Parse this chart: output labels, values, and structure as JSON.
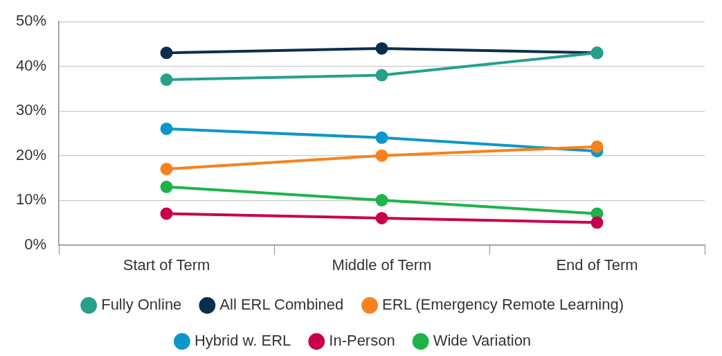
{
  "chart_data": {
    "type": "line",
    "categories": [
      "Start of Term",
      "Middle of Term",
      "End of Term"
    ],
    "series": [
      {
        "name": "Fully Online",
        "color": "#26a08b",
        "values": [
          37,
          38,
          43
        ]
      },
      {
        "name": "All ERL Combined",
        "color": "#0b2e4f",
        "values": [
          43,
          44,
          43
        ]
      },
      {
        "name": "ERL (Emergency Remote Learning)",
        "color": "#f7811c",
        "values": [
          17,
          20,
          22
        ]
      },
      {
        "name": "Hybrid w. ERL",
        "color": "#0c97c9",
        "values": [
          26,
          24,
          21
        ]
      },
      {
        "name": "In-Person",
        "color": "#c8004b",
        "values": [
          7,
          6,
          5
        ]
      },
      {
        "name": "Wide Variation",
        "color": "#1db34a",
        "values": [
          13,
          10,
          7
        ]
      }
    ],
    "ylim": [
      0,
      50
    ],
    "yticks": [
      {
        "value": 0,
        "label": "0%"
      },
      {
        "value": 10,
        "label": "10%"
      },
      {
        "value": 20,
        "label": "20%"
      },
      {
        "value": 30,
        "label": "30%"
      },
      {
        "value": 40,
        "label": "40%"
      },
      {
        "value": 50,
        "label": "50%"
      }
    ],
    "grid": "y",
    "legend": "bottom",
    "marker": "circle",
    "line_style": "solid"
  }
}
